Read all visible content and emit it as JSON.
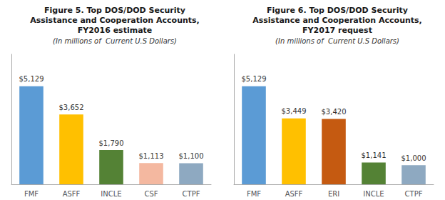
{
  "chart_data": [
    {
      "type": "bar",
      "title": "Figure 5. Top DOS/DOD Security\nAssistance and Cooperation Accounts,\nFY2016 estimate",
      "subtitle": "(In millions of  Current U.S Dollars)",
      "categories": [
        "FMF",
        "ASFF",
        "INCLE",
        "CSF",
        "CTPF"
      ],
      "values": [
        5129,
        3652,
        1790,
        1113,
        1100
      ],
      "value_labels": [
        "$5,129",
        "$3,652",
        "$1,790",
        "$1,113",
        "$1,100"
      ],
      "colors": [
        "#5B9BD5",
        "#FFC000",
        "#548235",
        "#F4B8A0",
        "#8EA9C1"
      ],
      "ylim": [
        0,
        6800
      ],
      "grid": false,
      "data_labels": true,
      "tick_labels": "x"
    },
    {
      "type": "bar",
      "title": "Figure 6. Top DOS/DOD Security\nAssistance and Cooperation Accounts,\nFY2017 request",
      "subtitle": "(In millions of  Current U.S Dollars)",
      "categories": [
        "FMF",
        "ASFF",
        "ERI",
        "INCLE",
        "CTPF"
      ],
      "values": [
        5129,
        3449,
        3420,
        1141,
        1000
      ],
      "value_labels": [
        "$5,129",
        "$3,449",
        "$3,420",
        "$1,141",
        "$1,000"
      ],
      "colors": [
        "#5B9BD5",
        "#FFC000",
        "#C55A11",
        "#548235",
        "#8EA9C1"
      ],
      "ylim": [
        0,
        6800
      ],
      "grid": false,
      "data_labels": true,
      "tick_labels": "x"
    }
  ]
}
